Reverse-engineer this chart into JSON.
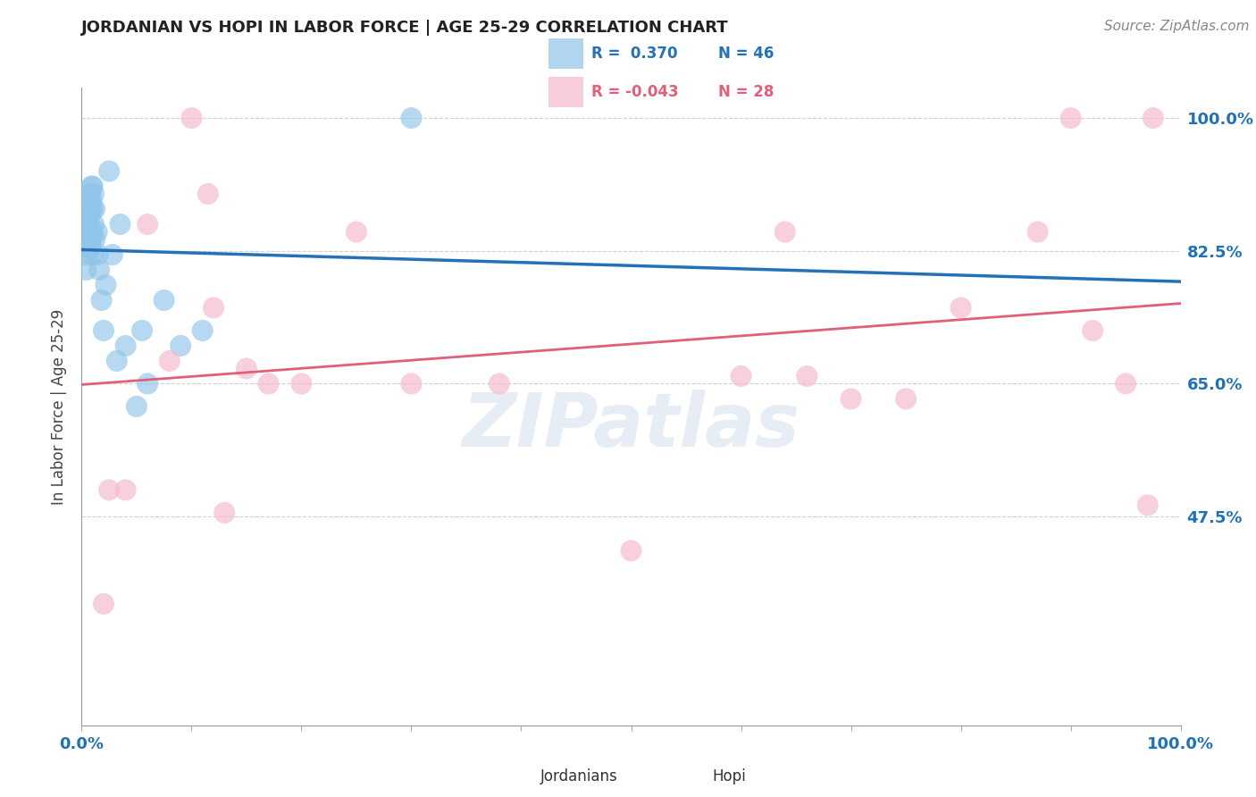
{
  "title": "JORDANIAN VS HOPI IN LABOR FORCE | AGE 25-29 CORRELATION CHART",
  "ylabel": "In Labor Force | Age 25-29",
  "source": "Source: ZipAtlas.com",
  "x_min": 0.0,
  "x_max": 1.0,
  "y_min": 0.2,
  "y_max": 1.04,
  "y_ticks": [
    0.475,
    0.65,
    0.825,
    1.0
  ],
  "y_tick_labels": [
    "47.5%",
    "65.0%",
    "82.5%",
    "100.0%"
  ],
  "x_ticks": [
    0.0,
    0.25,
    0.5,
    0.75,
    1.0
  ],
  "x_tick_labels": [
    "0.0%",
    "",
    "",
    "",
    "100.0%"
  ],
  "blue_color": "#90c4e8",
  "pink_color": "#f5b8cc",
  "blue_line_color": "#2471b8",
  "pink_line_color": "#e0607a",
  "blue_r": "0.370",
  "blue_n": "46",
  "pink_r": "-0.043",
  "pink_n": "28",
  "watermark": "ZIPatlas",
  "blue_x": [
    0.004,
    0.004,
    0.004,
    0.004,
    0.005,
    0.005,
    0.005,
    0.006,
    0.006,
    0.006,
    0.007,
    0.007,
    0.007,
    0.007,
    0.008,
    0.008,
    0.008,
    0.009,
    0.009,
    0.009,
    0.01,
    0.01,
    0.01,
    0.01,
    0.011,
    0.011,
    0.012,
    0.012,
    0.014,
    0.015,
    0.016,
    0.018,
    0.02,
    0.022,
    0.025,
    0.028,
    0.032,
    0.035,
    0.04,
    0.05,
    0.055,
    0.06,
    0.075,
    0.09,
    0.11,
    0.3
  ],
  "blue_y": [
    0.86,
    0.84,
    0.82,
    0.8,
    0.87,
    0.85,
    0.83,
    0.88,
    0.86,
    0.84,
    0.89,
    0.87,
    0.85,
    0.83,
    0.9,
    0.88,
    0.83,
    0.91,
    0.89,
    0.84,
    0.91,
    0.88,
    0.85,
    0.82,
    0.9,
    0.86,
    0.88,
    0.84,
    0.85,
    0.82,
    0.8,
    0.76,
    0.72,
    0.78,
    0.93,
    0.82,
    0.68,
    0.86,
    0.7,
    0.62,
    0.72,
    0.65,
    0.76,
    0.7,
    0.72,
    1.0
  ],
  "pink_x": [
    0.02,
    0.025,
    0.04,
    0.06,
    0.08,
    0.1,
    0.12,
    0.15,
    0.17,
    0.2,
    0.25,
    0.3,
    0.38,
    0.5,
    0.6,
    0.64,
    0.66,
    0.7,
    0.75,
    0.8,
    0.87,
    0.9,
    0.92,
    0.95,
    0.97,
    0.975,
    0.13,
    0.115
  ],
  "pink_y": [
    0.36,
    0.51,
    0.51,
    0.86,
    0.68,
    1.0,
    0.75,
    0.67,
    0.65,
    0.65,
    0.85,
    0.65,
    0.65,
    0.43,
    0.66,
    0.85,
    0.66,
    0.63,
    0.63,
    0.75,
    0.85,
    1.0,
    0.72,
    0.65,
    0.49,
    1.0,
    0.48,
    0.9
  ]
}
